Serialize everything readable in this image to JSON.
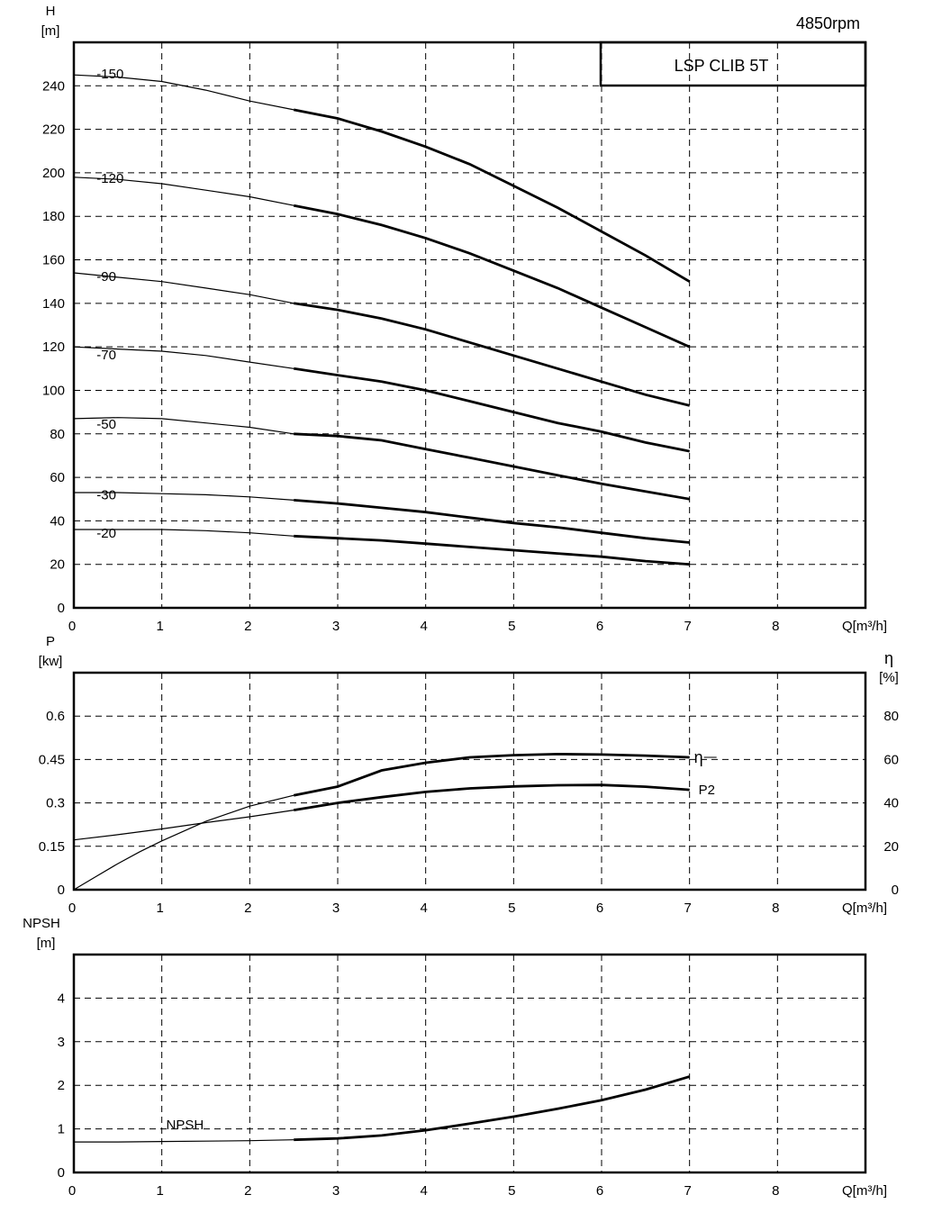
{
  "header": {
    "speed_label": "4850rpm",
    "model_label": "LSP CLIB 5T"
  },
  "chart_data": [
    {
      "id": "head",
      "type": "line",
      "ylabel_lines": [
        "H",
        "[m]"
      ],
      "xlabel": "Q[m³/h]",
      "xlim": [
        0,
        9
      ],
      "ylim": [
        0,
        260
      ],
      "x_ticks": [
        0,
        1,
        2,
        3,
        4,
        5,
        6,
        7,
        8
      ],
      "y_ticks": [
        0,
        20,
        40,
        60,
        80,
        100,
        120,
        140,
        160,
        180,
        200,
        220,
        240
      ],
      "grid": true,
      "thick_from_x": 2.5,
      "series": [
        {
          "name": "-150",
          "label_at": [
            0.3,
            245
          ],
          "points": [
            [
              0,
              245
            ],
            [
              0.5,
              244
            ],
            [
              1,
              242
            ],
            [
              1.5,
              238
            ],
            [
              2,
              233
            ],
            [
              2.5,
              229
            ],
            [
              3,
              225
            ],
            [
              3.5,
              219
            ],
            [
              4,
              212
            ],
            [
              4.5,
              204
            ],
            [
              5,
              194
            ],
            [
              5.5,
              184
            ],
            [
              6,
              173
            ],
            [
              6.5,
              162
            ],
            [
              7,
              150
            ]
          ]
        },
        {
          "name": "-120",
          "label_at": [
            0.3,
            197
          ],
          "points": [
            [
              0,
              198
            ],
            [
              0.5,
              197
            ],
            [
              1,
              195
            ],
            [
              1.5,
              192
            ],
            [
              2,
              189
            ],
            [
              2.5,
              185
            ],
            [
              3,
              181
            ],
            [
              3.5,
              176
            ],
            [
              4,
              170
            ],
            [
              4.5,
              163
            ],
            [
              5,
              155
            ],
            [
              5.5,
              147
            ],
            [
              6,
              138
            ],
            [
              6.5,
              129
            ],
            [
              7,
              120
            ]
          ]
        },
        {
          "name": "-90",
          "label_at": [
            0.3,
            152
          ],
          "points": [
            [
              0,
              154
            ],
            [
              0.5,
              152
            ],
            [
              1,
              150
            ],
            [
              1.5,
              147
            ],
            [
              2,
              144
            ],
            [
              2.5,
              140
            ],
            [
              3,
              137
            ],
            [
              3.5,
              133
            ],
            [
              4,
              128
            ],
            [
              4.5,
              122
            ],
            [
              5,
              116
            ],
            [
              5.5,
              110
            ],
            [
              6,
              104
            ],
            [
              6.5,
              98
            ],
            [
              7,
              93
            ]
          ]
        },
        {
          "name": "-70",
          "label_at": [
            0.3,
            116
          ],
          "points": [
            [
              0,
              120
            ],
            [
              0.5,
              119
            ],
            [
              1,
              118
            ],
            [
              1.5,
              116
            ],
            [
              2,
              113
            ],
            [
              2.5,
              110
            ],
            [
              3,
              107
            ],
            [
              3.5,
              104
            ],
            [
              4,
              100
            ],
            [
              4.5,
              95
            ],
            [
              5,
              90
            ],
            [
              5.5,
              85
            ],
            [
              6,
              81
            ],
            [
              6.5,
              76
            ],
            [
              7,
              72
            ]
          ]
        },
        {
          "name": "-50",
          "label_at": [
            0.3,
            84
          ],
          "points": [
            [
              0,
              87
            ],
            [
              0.5,
              87.5
            ],
            [
              1,
              87
            ],
            [
              1.5,
              85
            ],
            [
              2,
              83
            ],
            [
              2.5,
              80
            ],
            [
              3,
              79
            ],
            [
              3.5,
              77
            ],
            [
              4,
              73
            ],
            [
              4.5,
              69
            ],
            [
              5,
              65
            ],
            [
              5.5,
              61
            ],
            [
              6,
              57
            ],
            [
              6.5,
              53.5
            ],
            [
              7,
              50
            ]
          ]
        },
        {
          "name": "-30",
          "label_at": [
            0.3,
            51.5
          ],
          "points": [
            [
              0,
              53
            ],
            [
              0.5,
              53
            ],
            [
              1,
              52.5
            ],
            [
              1.5,
              52
            ],
            [
              2,
              51
            ],
            [
              2.5,
              49.5
            ],
            [
              3,
              48
            ],
            [
              3.5,
              46
            ],
            [
              4,
              44
            ],
            [
              4.5,
              41.5
            ],
            [
              5,
              39
            ],
            [
              5.5,
              37
            ],
            [
              6,
              34.5
            ],
            [
              6.5,
              32
            ],
            [
              7,
              30
            ]
          ]
        },
        {
          "name": "-20",
          "label_at": [
            0.3,
            34
          ],
          "points": [
            [
              0,
              36
            ],
            [
              0.5,
              36
            ],
            [
              1,
              36
            ],
            [
              1.5,
              35.5
            ],
            [
              2,
              34.5
            ],
            [
              2.5,
              33
            ],
            [
              3,
              32
            ],
            [
              3.5,
              31
            ],
            [
              4,
              29.5
            ],
            [
              4.5,
              28
            ],
            [
              5,
              26.5
            ],
            [
              5.5,
              25
            ],
            [
              6,
              23.5
            ],
            [
              6.5,
              21.5
            ],
            [
              7,
              20
            ]
          ]
        }
      ]
    },
    {
      "id": "power",
      "type": "line",
      "ylabel_lines": [
        "P",
        "[kw]"
      ],
      "y2label_lines": [
        "η",
        "[%]"
      ],
      "xlabel": "Q[m³/h]",
      "xlim": [
        0,
        9
      ],
      "ylim": [
        0,
        0.75
      ],
      "y2lim": [
        0,
        100
      ],
      "x_ticks": [
        0,
        1,
        2,
        3,
        4,
        5,
        6,
        7,
        8
      ],
      "y_ticks": [
        0,
        0.15,
        0.3,
        0.45,
        0.6
      ],
      "y_tick_labels": [
        "0",
        "0.15",
        "0.3",
        "0.45",
        "0.6"
      ],
      "y2_ticks": [
        0,
        20,
        40,
        60,
        80
      ],
      "grid": true,
      "thick_from_x": 2.5,
      "series": [
        {
          "name": "η",
          "axis": "right",
          "points": [
            [
              0,
              0
            ],
            [
              0.25,
              6
            ],
            [
              0.5,
              12
            ],
            [
              0.75,
              17.5
            ],
            [
              1,
              22.5
            ],
            [
              1.5,
              31.5
            ],
            [
              2,
              38.5
            ],
            [
              2.5,
              43.5
            ],
            [
              3,
              47.5
            ],
            [
              3.5,
              55
            ],
            [
              4,
              58.5
            ],
            [
              4.5,
              61
            ],
            [
              5,
              62
            ],
            [
              5.5,
              62.5
            ],
            [
              6,
              62.3
            ],
            [
              6.5,
              61.8
            ],
            [
              7,
              61
            ]
          ]
        },
        {
          "name": "P2",
          "axis": "left",
          "points": [
            [
              0,
              0.172
            ],
            [
              0.5,
              0.19
            ],
            [
              1,
              0.21
            ],
            [
              1.5,
              0.232
            ],
            [
              2,
              0.252
            ],
            [
              2.5,
              0.275
            ],
            [
              3,
              0.3
            ],
            [
              3.5,
              0.32
            ],
            [
              4,
              0.338
            ],
            [
              4.5,
              0.35
            ],
            [
              5,
              0.357
            ],
            [
              5.5,
              0.361
            ],
            [
              6,
              0.362
            ],
            [
              6.5,
              0.356
            ],
            [
              7,
              0.345
            ]
          ]
        }
      ]
    },
    {
      "id": "npsh",
      "type": "line",
      "ylabel_lines": [
        "NPSH",
        "[m]"
      ],
      "xlabel": "Q[m³/h]",
      "xlim": [
        0,
        9
      ],
      "ylim": [
        0,
        5
      ],
      "x_ticks": [
        0,
        1,
        2,
        3,
        4,
        5,
        6,
        7,
        8
      ],
      "y_ticks": [
        0,
        1,
        2,
        3,
        4
      ],
      "grid": true,
      "thick_from_x": 2.5,
      "series": [
        {
          "name": "NPSH",
          "label_at": [
            1.05,
            0.99
          ],
          "points": [
            [
              0,
              0.7
            ],
            [
              0.5,
              0.7
            ],
            [
              1,
              0.71
            ],
            [
              1.5,
              0.72
            ],
            [
              2,
              0.73
            ],
            [
              2.5,
              0.75
            ],
            [
              3,
              0.78
            ],
            [
              3.5,
              0.85
            ],
            [
              4,
              0.97
            ],
            [
              4.5,
              1.12
            ],
            [
              5,
              1.28
            ],
            [
              5.5,
              1.46
            ],
            [
              6,
              1.66
            ],
            [
              6.5,
              1.9
            ],
            [
              7,
              2.2
            ]
          ]
        }
      ]
    }
  ]
}
